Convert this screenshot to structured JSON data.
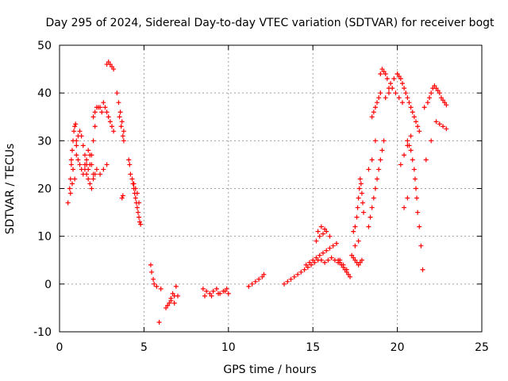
{
  "chart_data": {
    "type": "scatter",
    "title": "Day 295 of 2024, Sidereal Day-to-day VTEC variation (SDTVAR) for receiver bogt",
    "xlabel": "GPS time / hours",
    "ylabel": "SDTVAR / TECUs",
    "xlim": [
      0,
      25
    ],
    "ylim": [
      -10,
      50
    ],
    "xticks": [
      "0",
      "5",
      "10",
      "15",
      "20",
      "25"
    ],
    "yticks": [
      "-10",
      "0",
      "10",
      "20",
      "30",
      "40",
      "50"
    ],
    "grid": true,
    "marker": "+",
    "color": "#ff0000",
    "series": [
      {
        "name": "SDTVAR",
        "x": [
          0.5,
          0.6,
          0.65,
          0.7,
          0.75,
          0.8,
          0.85,
          0.9,
          0.95,
          1.0,
          1.0,
          0.7,
          0.8,
          0.9,
          0.65,
          0.75,
          1.0,
          1.1,
          1.2,
          1.3,
          1.4,
          1.5,
          1.6,
          1.7,
          1.8,
          1.9,
          2.0,
          2.1,
          1.1,
          1.2,
          1.3,
          1.4,
          1.5,
          1.6,
          1.7,
          1.8,
          1.9,
          2.0,
          1.5,
          1.6,
          1.7,
          1.8,
          1.9,
          2.0,
          2.1,
          2.0,
          2.1,
          2.2,
          2.3,
          2.4,
          2.5,
          2.6,
          2.7,
          2.8,
          2.9,
          3.0,
          3.1,
          3.2,
          2.2,
          2.4,
          2.6,
          2.8,
          2.8,
          2.9,
          3.0,
          3.1,
          3.2,
          3.4,
          3.5,
          3.6,
          3.7,
          3.8,
          3.55,
          3.65,
          3.75,
          3.8,
          3.7,
          3.75,
          4.1,
          4.15,
          4.2,
          4.3,
          4.35,
          4.4,
          4.45,
          4.5,
          4.55,
          4.6,
          4.65,
          4.7,
          4.75,
          4.8,
          4.4,
          4.5,
          4.6,
          4.7,
          5.4,
          5.45,
          5.55,
          5.6,
          5.75,
          5.9,
          6.0,
          6.3,
          6.4,
          6.5,
          6.6,
          6.7,
          6.8,
          6.9,
          7.0,
          6.6,
          6.8,
          8.5,
          8.7,
          8.9,
          9.1,
          9.3,
          9.5,
          9.7,
          9.9,
          10.0,
          8.6,
          9.0,
          9.4,
          9.8,
          11.2,
          11.4,
          11.6,
          11.8,
          12.0,
          12.1,
          13.3,
          13.5,
          13.7,
          13.9,
          14.1,
          14.3,
          14.5,
          14.7,
          14.9,
          15.1,
          15.3,
          15.5,
          15.7,
          15.9,
          16.1,
          16.3,
          16.5,
          14.6,
          14.8,
          15.0,
          15.2,
          15.4,
          15.6,
          15.8,
          16.0,
          16.2,
          16.4,
          15.2,
          15.4,
          15.6,
          15.8,
          16.0,
          15.3,
          15.5,
          15.7,
          16.5,
          16.6,
          16.7,
          16.8,
          16.9,
          17.0,
          17.1,
          17.2,
          16.6,
          16.8,
          17.0,
          17.3,
          17.4,
          17.5,
          17.6,
          17.7,
          17.8,
          17.9,
          17.5,
          17.7,
          17.6,
          17.65,
          17.7,
          17.75,
          17.8,
          17.85,
          17.9,
          17.95,
          18.0,
          17.4,
          17.5,
          18.3,
          18.4,
          18.5,
          18.6,
          18.7,
          18.8,
          18.9,
          19.0,
          19.1,
          19.2,
          18.3,
          18.5,
          18.7,
          18.5,
          18.6,
          18.7,
          18.8,
          18.9,
          19.0,
          19.0,
          19.1,
          19.2,
          19.3,
          19.4,
          19.5,
          19.3,
          19.5,
          19.7,
          19.9,
          20.1,
          20.3,
          19.6,
          19.8,
          20.0,
          20.0,
          20.1,
          20.2,
          20.3,
          20.4,
          20.5,
          20.6,
          20.7,
          20.8,
          20.9,
          21.0,
          21.1,
          21.2,
          21.3,
          20.2,
          20.4,
          20.6,
          20.8,
          20.4,
          20.6,
          20.6,
          20.7,
          20.8,
          20.9,
          21.0,
          21.05,
          21.1,
          21.15,
          21.2,
          21.3,
          21.4,
          21.5,
          21.6,
          21.8,
          21.9,
          22.0,
          22.1,
          22.2,
          22.3,
          22.4,
          22.5,
          22.6,
          22.7,
          22.8,
          22.9,
          22.3,
          22.5,
          22.7,
          22.9,
          21.7,
          22.0
        ],
        "y": [
          17,
          20,
          22,
          25,
          28,
          30,
          32,
          33,
          33.5,
          30,
          27,
          26,
          24,
          22,
          19,
          21,
          29,
          31,
          32,
          31,
          29,
          27,
          25,
          24,
          25,
          27,
          30,
          33,
          26,
          25,
          24,
          23,
          25,
          26,
          28,
          27,
          25,
          23,
          24,
          23,
          22,
          21,
          20,
          22,
          23,
          35,
          36,
          37,
          37,
          37,
          36,
          38,
          37,
          36,
          35,
          34,
          33,
          32,
          24,
          23,
          24,
          25,
          46,
          46.5,
          46,
          45.5,
          45,
          40,
          38,
          36,
          34,
          32,
          35,
          33,
          31,
          30,
          18,
          18.5,
          26,
          25,
          23,
          22,
          21,
          20,
          19,
          18,
          17,
          16,
          15,
          14,
          13,
          12.5,
          21,
          20,
          19,
          17,
          4,
          2.5,
          1,
          0,
          -0.5,
          -8,
          -1,
          -5,
          -4.5,
          -4,
          -3.5,
          -2,
          -2.5,
          -0.5,
          -2.5,
          -3,
          -4,
          -1,
          -1.5,
          -2,
          -1.5,
          -1,
          -2,
          -1.5,
          -1,
          -2,
          -2.5,
          -2.5,
          -2,
          -1.5,
          -0.5,
          0,
          0.5,
          1,
          1.5,
          2,
          0,
          0.5,
          1,
          1.5,
          2,
          2.5,
          3,
          3.5,
          4,
          4.5,
          5,
          5,
          4.5,
          5,
          5.5,
          5,
          4.5,
          4,
          4.5,
          5,
          5.5,
          6,
          6.5,
          7,
          7.5,
          8,
          8.5,
          9,
          10,
          10.5,
          11,
          10,
          11,
          12,
          11.5,
          5,
          4.5,
          4,
          3.5,
          3,
          2.5,
          2,
          1.5,
          5,
          4,
          3,
          6,
          5.5,
          5,
          4.5,
          4,
          4.5,
          5,
          8,
          9,
          14,
          16,
          18,
          20,
          22,
          21,
          19,
          17,
          15,
          11,
          12,
          12,
          14,
          16,
          18,
          20,
          22,
          24,
          26,
          28,
          30,
          24,
          26,
          30,
          35,
          36,
          37,
          38,
          39,
          40,
          44,
          45,
          44.5,
          44,
          43,
          41,
          39,
          40,
          41,
          40,
          39,
          38,
          42,
          43,
          44,
          44,
          43.5,
          43,
          42,
          41,
          40,
          39,
          38,
          37,
          36,
          35,
          34,
          33,
          32,
          25,
          27,
          29,
          31,
          16,
          18,
          30,
          29,
          28,
          26,
          24,
          22,
          20,
          18,
          15,
          12,
          8,
          3,
          37,
          38,
          39,
          40,
          41,
          41.5,
          41,
          40.5,
          40,
          39,
          38.5,
          38,
          37.5,
          34,
          33.5,
          33,
          32.5,
          26,
          30
        ]
      }
    ]
  }
}
